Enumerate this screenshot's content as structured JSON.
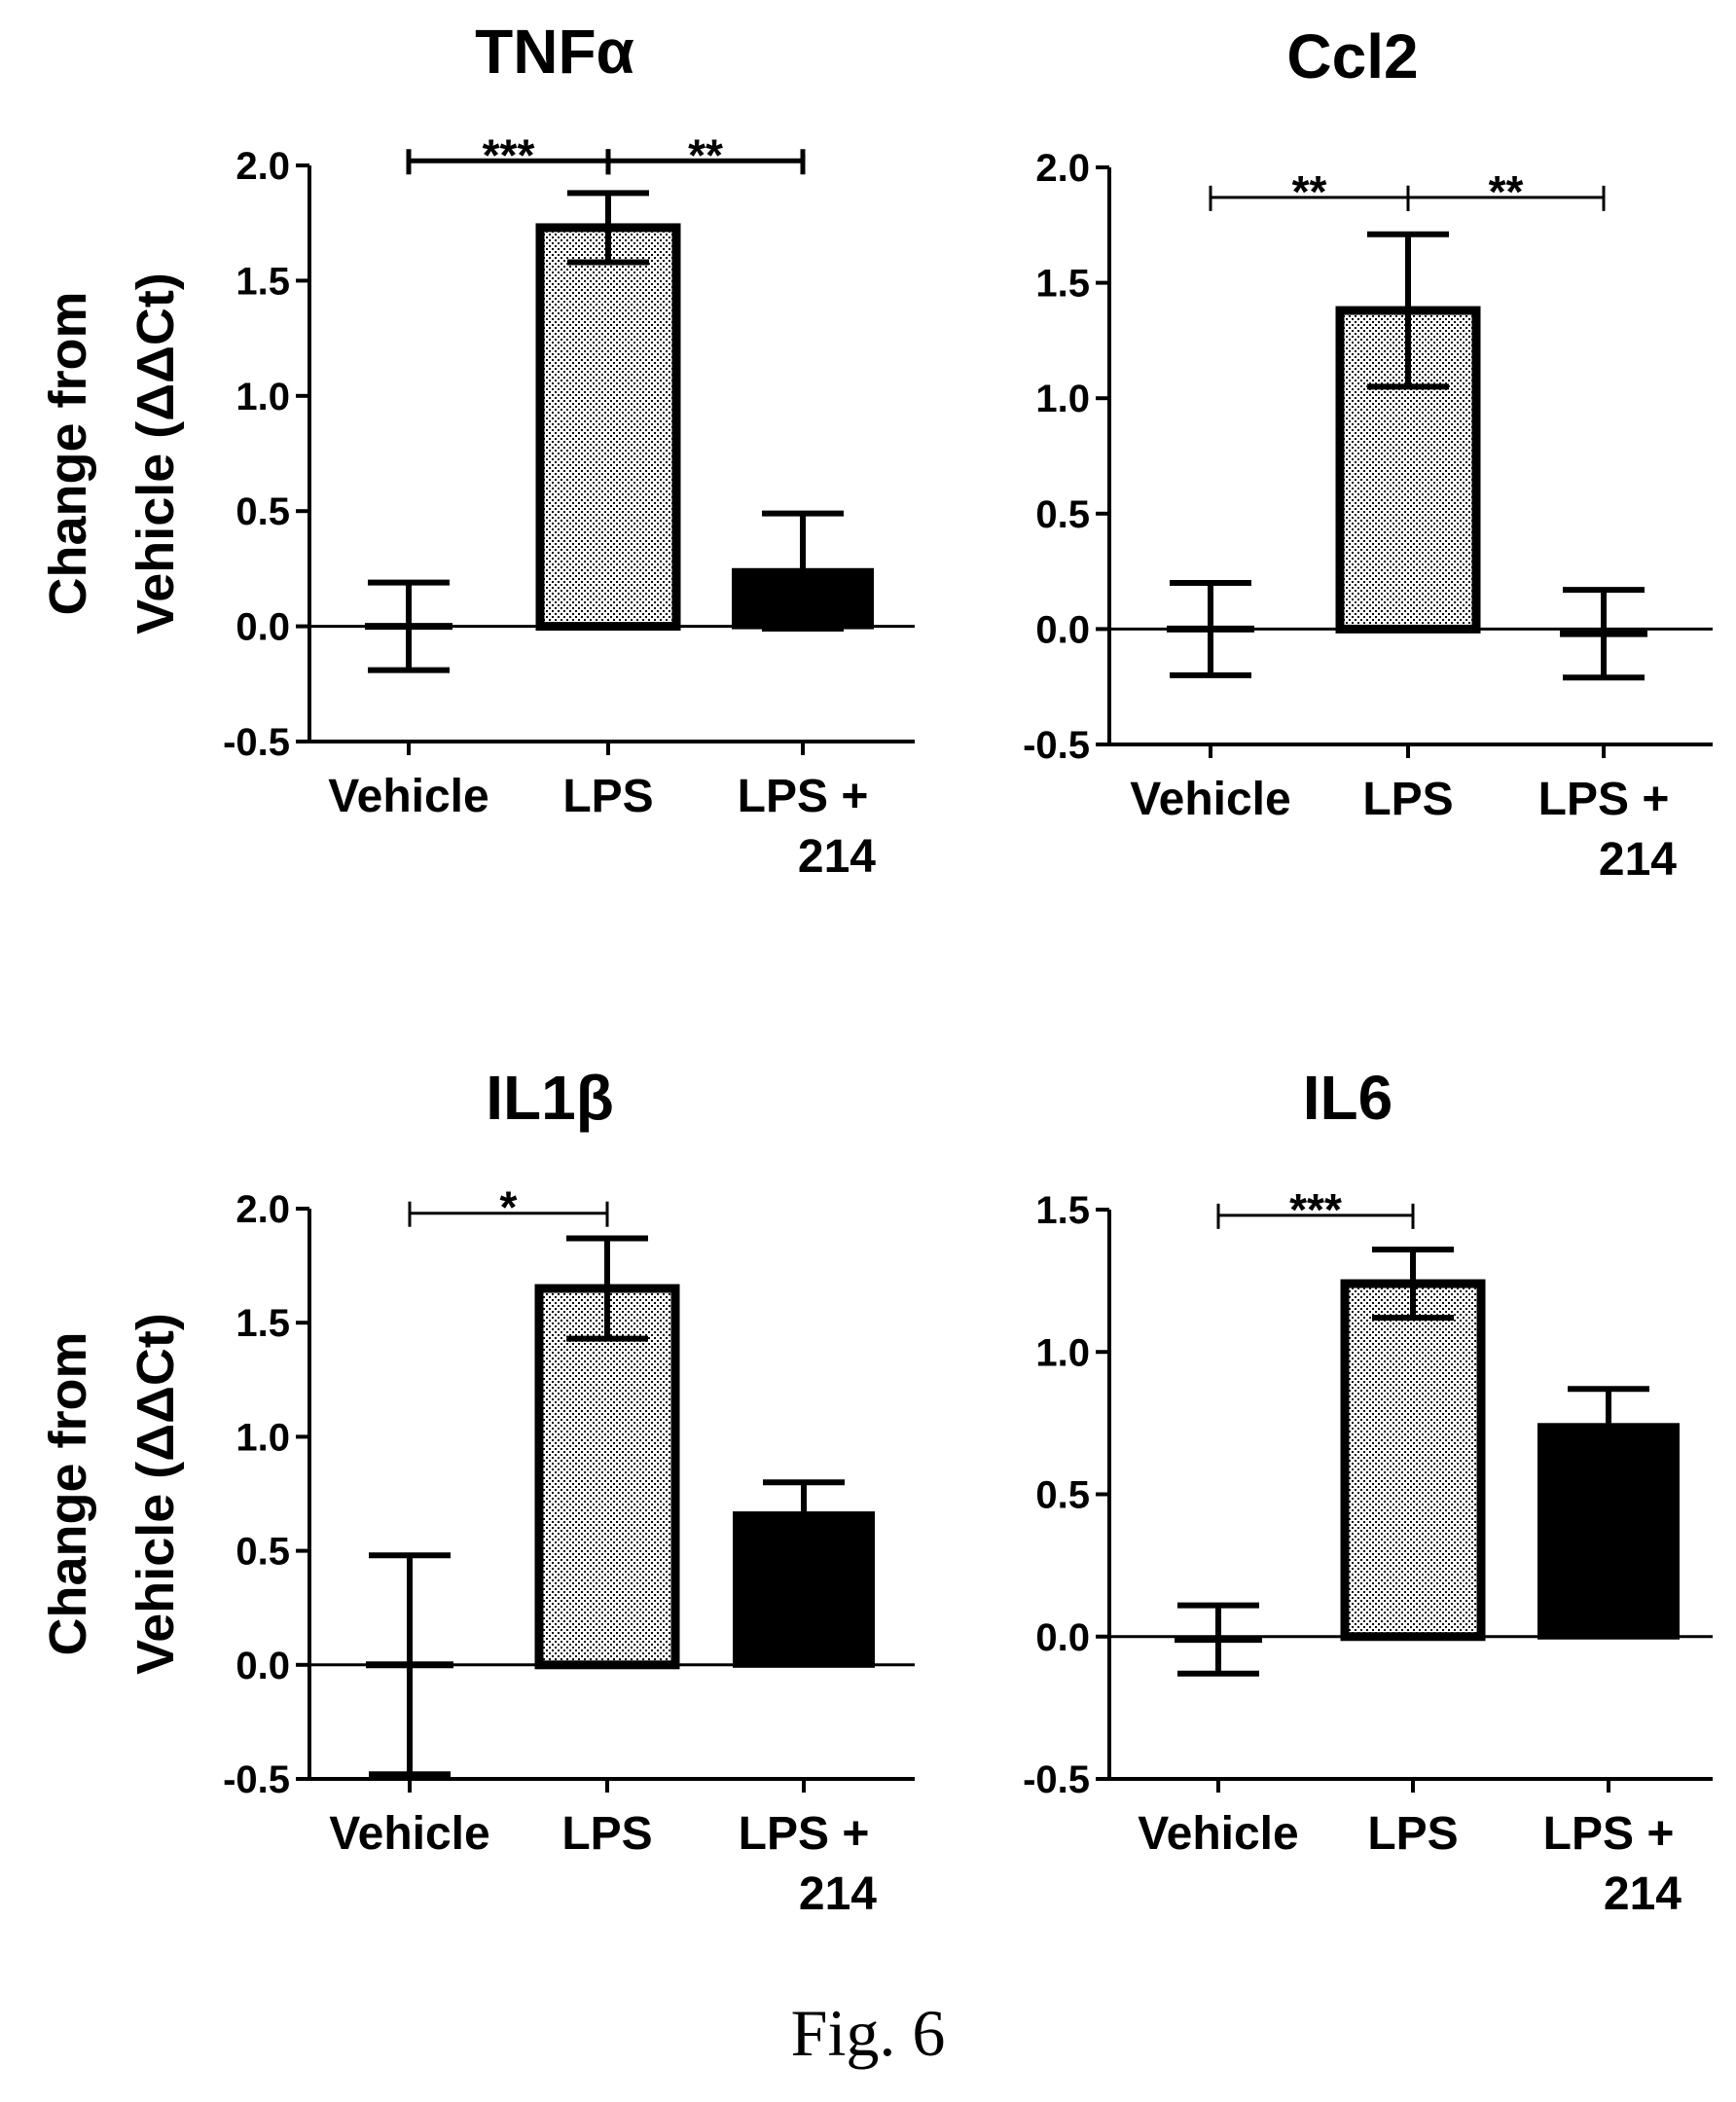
{
  "caption": "Fig. 6",
  "ylabel_line1": "Change from",
  "ylabel_line2": "Vehicle (ΔΔCt)",
  "chart_data": [
    {
      "type": "bar",
      "title": "TNFα",
      "categories": [
        "Vehicle",
        "LPS",
        "LPS +\n214"
      ],
      "values": [
        0.0,
        1.73,
        0.24
      ],
      "error": [
        0.19,
        0.15,
        0.25
      ],
      "fills": [
        "none",
        "dotted",
        "black"
      ],
      "ylim": [
        -0.5,
        2.0
      ],
      "yticks": [
        "2.0",
        "1.5",
        "1.0",
        "0.5",
        "0.0",
        "-0.5"
      ],
      "significance": [
        {
          "from": 0,
          "to": 1,
          "y": 2.02,
          "label": "***"
        },
        {
          "from": 1,
          "to": 2,
          "y": 2.02,
          "label": "**"
        }
      ]
    },
    {
      "type": "bar",
      "title": "Ccl2",
      "categories": [
        "Vehicle",
        "LPS",
        "LPS +\n214"
      ],
      "values": [
        0.0,
        1.38,
        -0.02
      ],
      "error": [
        0.2,
        0.33,
        0.19
      ],
      "fills": [
        "none",
        "dotted",
        "none"
      ],
      "ylim": [
        -0.5,
        2.0
      ],
      "yticks": [
        "2.0",
        "1.5",
        "1.0",
        "0.5",
        "0.0",
        "-0.5"
      ],
      "significance": [
        {
          "from": 0,
          "to": 1,
          "y": 1.87,
          "label": "**"
        },
        {
          "from": 1,
          "to": 2,
          "y": 1.87,
          "label": "**"
        }
      ]
    },
    {
      "type": "bar",
      "title": "IL1β",
      "categories": [
        "Vehicle",
        "LPS",
        "LPS +\n214"
      ],
      "values": [
        0.0,
        1.65,
        0.66
      ],
      "error": [
        0.48,
        0.22,
        0.14
      ],
      "fills": [
        "none",
        "dotted",
        "black"
      ],
      "ylim": [
        -0.5,
        2.0
      ],
      "yticks": [
        "2.0",
        "1.5",
        "1.0",
        "0.5",
        "0.0",
        "-0.5"
      ],
      "significance": [
        {
          "from": 0,
          "to": 1,
          "y": 1.98,
          "label": "*"
        }
      ]
    },
    {
      "type": "bar",
      "title": "IL6",
      "categories": [
        "Vehicle",
        "LPS",
        "LPS +\n214"
      ],
      "values": [
        -0.01,
        1.24,
        0.74
      ],
      "error": [
        0.12,
        0.12,
        0.13
      ],
      "fills": [
        "none",
        "dotted",
        "black"
      ],
      "ylim": [
        -0.5,
        1.5
      ],
      "yticks": [
        "1.5",
        "1.0",
        "0.5",
        "0.0",
        "-0.5"
      ],
      "significance": [
        {
          "from": 0,
          "to": 1,
          "y": 1.48,
          "label": "***"
        }
      ]
    }
  ]
}
